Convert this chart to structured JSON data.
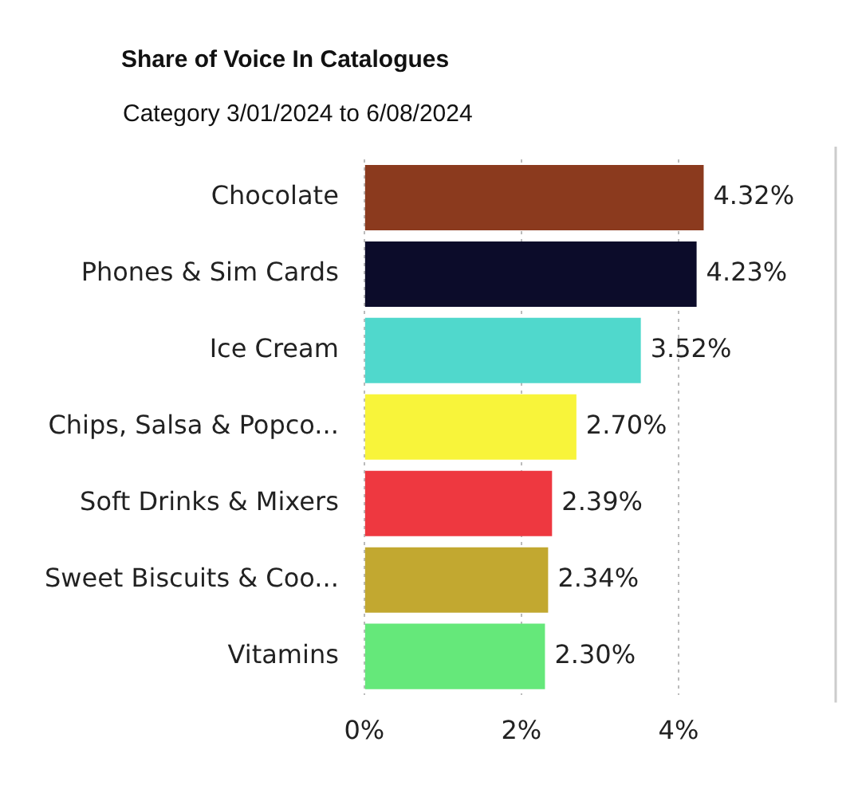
{
  "chart_data": {
    "type": "bar",
    "orientation": "horizontal",
    "title": "Share of Voice In Catalogues",
    "subtitle": "Category 3/01/2024 to 6/08/2024",
    "categories": [
      "Chocolate",
      "Phones & Sim Cards",
      "Ice Cream",
      "Chips, Salsa & Popco...",
      "Soft Drinks & Mixers",
      "Sweet Biscuits & Coo...",
      "Vitamins"
    ],
    "values": [
      4.32,
      4.23,
      3.52,
      2.7,
      2.39,
      2.34,
      2.3
    ],
    "value_labels": [
      "4.32%",
      "4.23%",
      "3.52%",
      "2.70%",
      "2.39%",
      "2.34%",
      "2.30%"
    ],
    "colors": [
      "#8b3a1e",
      "#0c0c2a",
      "#50d8cc",
      "#f8f43a",
      "#ee3840",
      "#c2a830",
      "#65e87a"
    ],
    "xlim": [
      0,
      6
    ],
    "xticks": [
      {
        "value": 0,
        "label": "0%"
      },
      {
        "value": 2,
        "label": "2%"
      },
      {
        "value": 4,
        "label": "4%"
      }
    ],
    "grid": "x",
    "legend": false
  }
}
